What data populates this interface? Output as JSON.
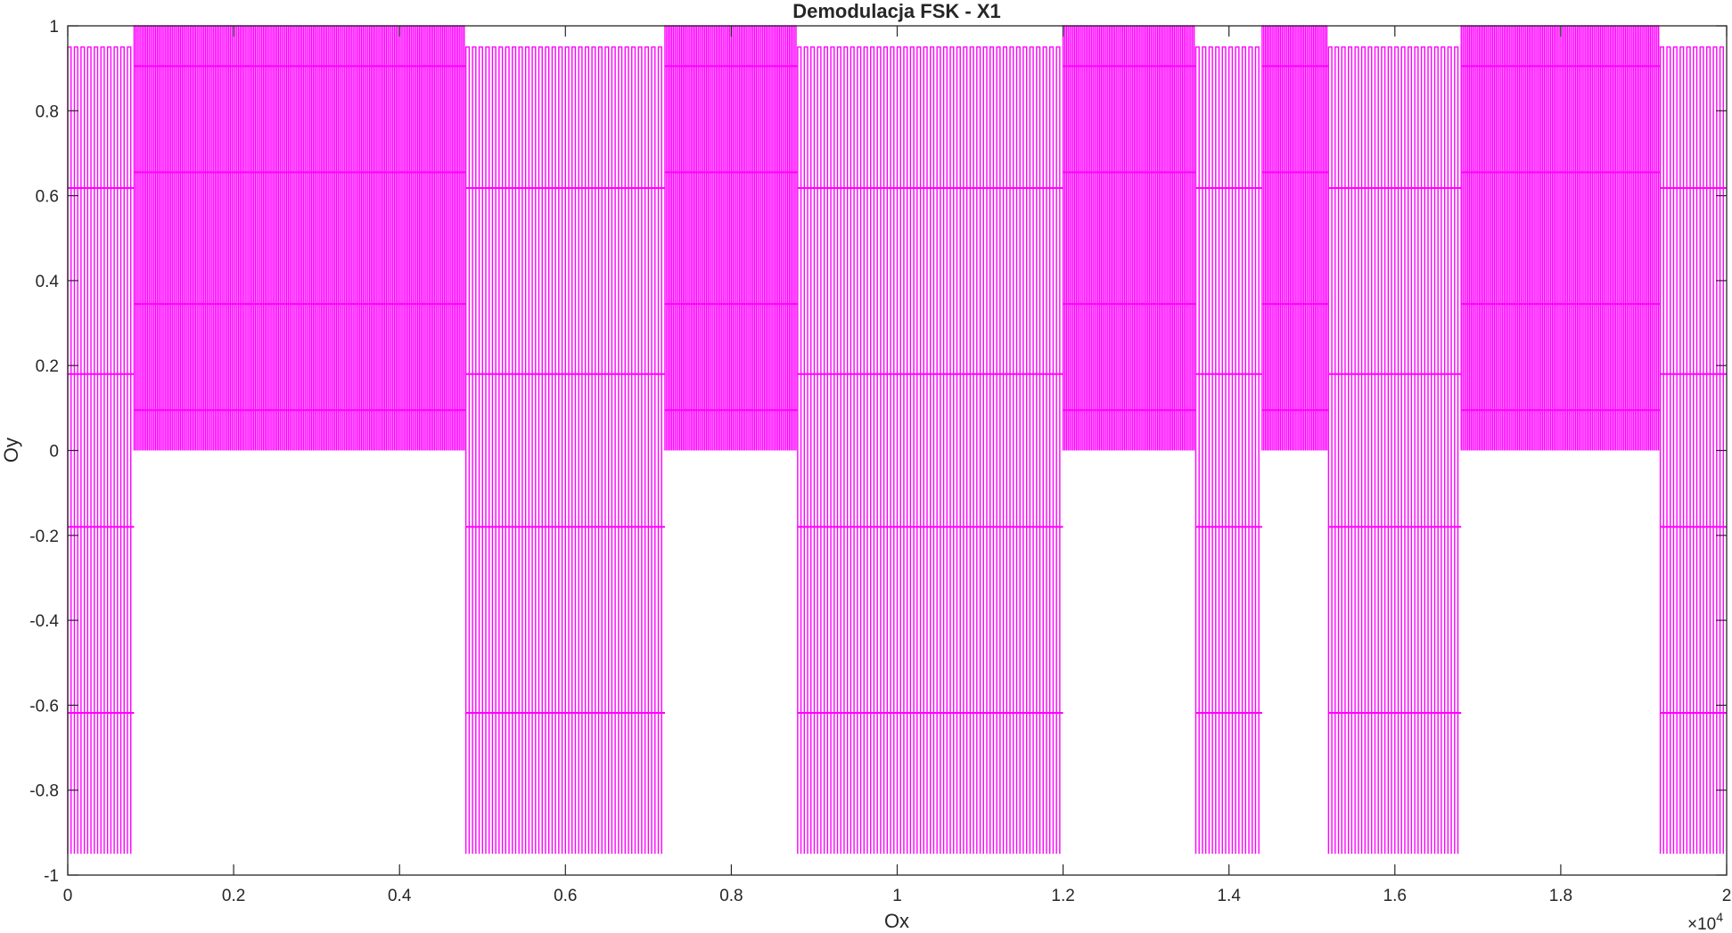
{
  "chart_data": {
    "type": "line",
    "title": "Demodulacja FSK - X1",
    "xlabel": "Ox",
    "ylabel": "Oy",
    "xlim": [
      0,
      20000
    ],
    "ylim": [
      -1,
      1
    ],
    "x_exponent_label": "×10",
    "x_exponent_power": "4",
    "x_ticks": [
      0,
      2000,
      4000,
      6000,
      8000,
      10000,
      12000,
      14000,
      16000,
      18000,
      20000
    ],
    "x_tick_labels": [
      "0",
      "0.2",
      "0.4",
      "0.6",
      "0.8",
      "1",
      "1.2",
      "1.4",
      "1.6",
      "1.8",
      "2"
    ],
    "y_ticks": [
      -1,
      -0.8,
      -0.6,
      -0.4,
      -0.2,
      0,
      0.2,
      0.4,
      0.6,
      0.8,
      1
    ],
    "y_tick_labels": [
      "-1",
      "-0.8",
      "-0.6",
      "-0.4",
      "-0.2",
      "0",
      "0.2",
      "0.4",
      "0.6",
      "0.8",
      "1"
    ],
    "grid": false,
    "box": true,
    "line_color": "#ff00ff",
    "series": [
      {
        "segments": [
          {
            "x_start": 0,
            "x_end": 800,
            "bit": 0
          },
          {
            "x_start": 800,
            "x_end": 4800,
            "bit": 1
          },
          {
            "x_start": 4800,
            "x_end": 7200,
            "bit": 0
          },
          {
            "x_start": 7200,
            "x_end": 8800,
            "bit": 1
          },
          {
            "x_start": 8800,
            "x_end": 12000,
            "bit": 0
          },
          {
            "x_start": 12000,
            "x_end": 13600,
            "bit": 1
          },
          {
            "x_start": 13600,
            "x_end": 14400,
            "bit": 0
          },
          {
            "x_start": 14400,
            "x_end": 15200,
            "bit": 1
          },
          {
            "x_start": 15200,
            "x_end": 16800,
            "bit": 0
          },
          {
            "x_start": 16800,
            "x_end": 19200,
            "bit": 1
          },
          {
            "x_start": 19200,
            "x_end": 20000,
            "bit": 0
          }
        ],
        "bit0_shape": {
          "period": 80,
          "min": -0.95,
          "max": 0.95,
          "levels": [
            0.618,
            0.18,
            -0.18,
            -0.618
          ]
        },
        "bit1_shape": {
          "period": 40,
          "min": 0,
          "max": 1,
          "levels": [
            0.905,
            0.655,
            0.345,
            0.095
          ]
        }
      }
    ]
  }
}
